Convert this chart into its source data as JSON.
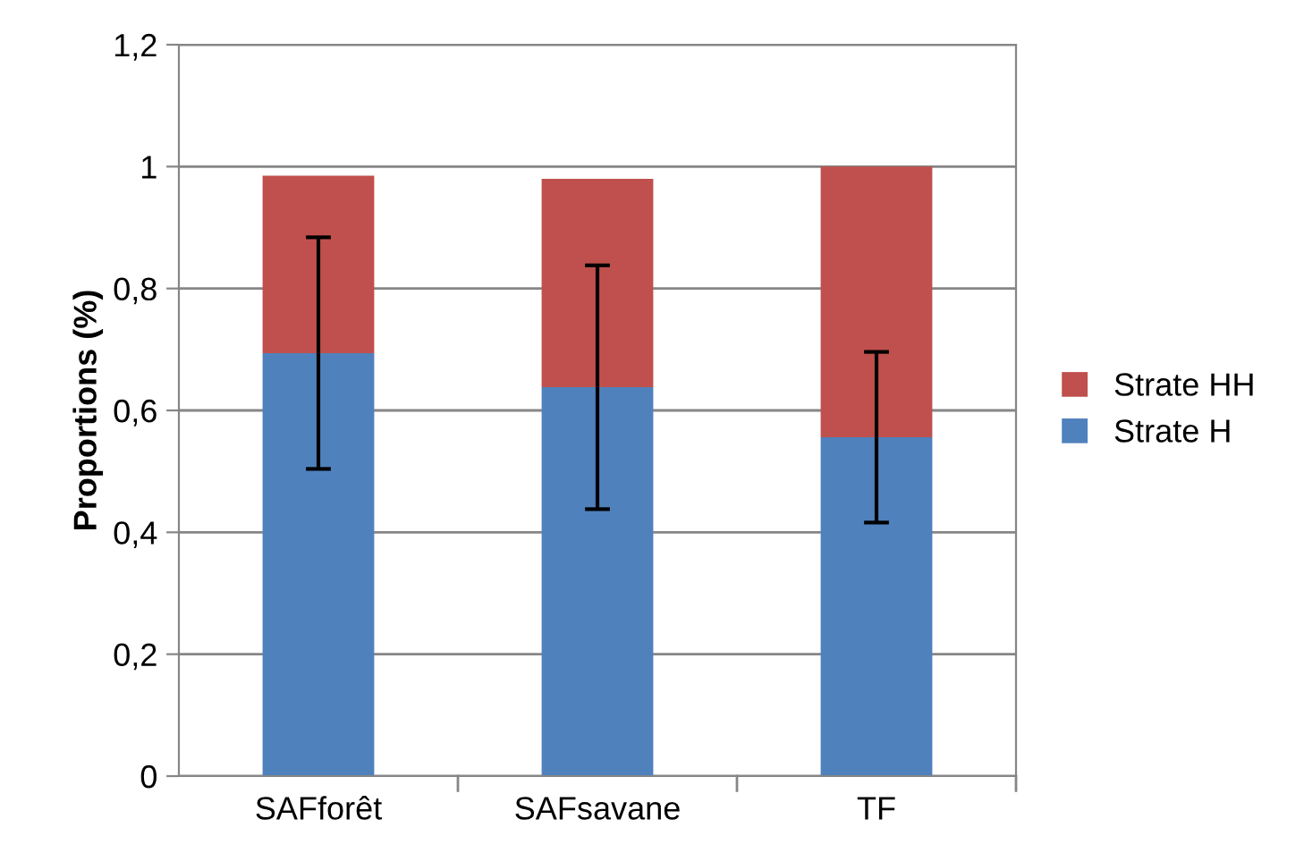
{
  "chart_data": {
    "type": "bar",
    "stacked": true,
    "ylabel": "Proportions (%)",
    "categories": [
      "SAFforêt",
      "SAFsavane",
      "TF"
    ],
    "series": [
      {
        "name": "Strate H",
        "color": "#4f81bd",
        "values": [
          0.694,
          0.638,
          0.556
        ],
        "errors": [
          0.19,
          0.2,
          0.14
        ]
      },
      {
        "name": "Strate HH",
        "color": "#c0504d",
        "values": [
          0.291,
          0.342,
          0.444
        ]
      }
    ],
    "ylim": [
      0,
      1.2
    ],
    "yticks": [
      {
        "value": 0,
        "label": "0"
      },
      {
        "value": 0.2,
        "label": "0,2"
      },
      {
        "value": 0.4,
        "label": "0,4"
      },
      {
        "value": 0.6,
        "label": "0,6"
      },
      {
        "value": 0.8,
        "label": "0,8"
      },
      {
        "value": 1,
        "label": "1"
      },
      {
        "value": 1.2,
        "label": "1,2"
      }
    ],
    "grid": "y",
    "legend": "right"
  }
}
